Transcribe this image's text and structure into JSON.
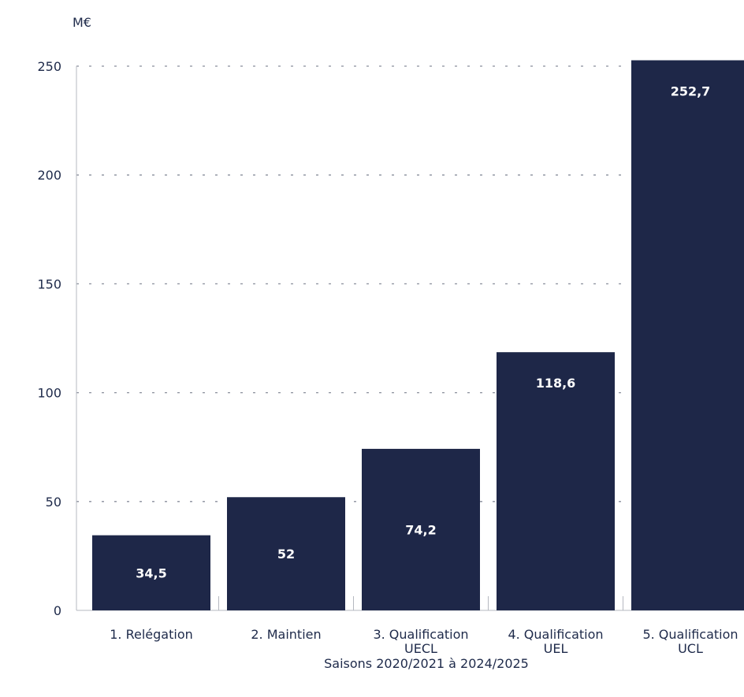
{
  "chart_data": {
    "type": "bar",
    "unit_label": "M€",
    "categories": [
      [
        "1. Relégation"
      ],
      [
        "2. Maintien"
      ],
      [
        "3. Qualification",
        "UECL"
      ],
      [
        "4. Qualification",
        "UEL"
      ],
      [
        "5. Qualification",
        "UCL"
      ]
    ],
    "values": [
      34.5,
      52,
      74.2,
      118.6,
      252.7
    ],
    "data_labels": [
      "34,5",
      "52",
      "74,2",
      "118,6",
      "252,7"
    ],
    "xlabel": "Saisons 2020/2021 à 2024/2025",
    "ylabel": "",
    "ylim": [
      0,
      250
    ],
    "yticks": [
      0,
      50,
      100,
      150,
      200,
      250
    ],
    "grid": true,
    "colors": {
      "bar": "#1e2748",
      "text": "#1e2a4a",
      "grid": "#8a8f9c",
      "axis": "#b5b8c0"
    }
  }
}
